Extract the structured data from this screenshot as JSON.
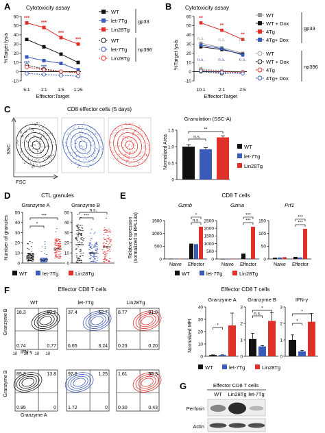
{
  "colors": {
    "wt": "#111111",
    "let7": "#3a5bb8",
    "lin28": "#e0302a",
    "gray": "#999999",
    "blot": "#222222"
  },
  "panels": {
    "A": {
      "letter": "A",
      "title": "Cytotoxicity assay",
      "ylabel": "%Target lysis",
      "xlabel": "Effector:Target",
      "groups": [
        "gp33",
        "np396"
      ],
      "legend": [
        "WT",
        "let-7Tg",
        "Lin28Tg",
        "WT",
        "let-7Tg",
        "Lin28Tg"
      ],
      "sig_lin28": "***",
      "sig_let7": "***"
    },
    "B": {
      "letter": "B",
      "title": "Cytotoxicity assay",
      "ylabel": "%Target lysis",
      "xlabel": "Effector:Target",
      "groups": [
        "gp33",
        "np396"
      ],
      "legend": [
        "WT",
        "WT + Dox",
        "4Tg",
        "4Tg+ Dox",
        "WT",
        "WT + Dox",
        "4Tg",
        "4Tg+ Dox"
      ],
      "sig": [
        "**",
        "**",
        "**"
      ],
      "ns": "n.s."
    },
    "C": {
      "letter": "C",
      "title": "CD8 effector cells (5 days)",
      "xaxis": "FSC",
      "yaxis": "SSC",
      "bar_title": "Granulation (SSC-A)",
      "bar_ylabel": "Normalized Area",
      "legend": [
        "WT",
        "let-7Tg",
        "Lin28Tg"
      ],
      "ns": "n.s.",
      "sig": "**"
    },
    "D": {
      "letter": "D",
      "title": "CTL granules",
      "ylabel": "Number of granules",
      "sub": [
        "Granzyme A",
        "Granzyme B"
      ],
      "legend": [
        "WT",
        "let-7Tg",
        "Lin28Tg"
      ],
      "sig": [
        "*",
        "***",
        "***",
        "n.s."
      ]
    },
    "E": {
      "letter": "E",
      "title": "CD8 T cells",
      "ylabel": "Relative expression",
      "ylabel2": "(normalized to RPL13a)",
      "genes": [
        "Gzmb",
        "Gzma",
        "Prf1"
      ],
      "xcats": [
        "Naive",
        "Effector"
      ],
      "legend": [
        "WT",
        "let-7Tg",
        "Lin28Tg"
      ],
      "sig": [
        "*",
        "***",
        "***",
        "***",
        "***",
        "n.s."
      ]
    },
    "F": {
      "letter": "F",
      "title": "Effector CD8 T cells",
      "cols": [
        "WT",
        "let-7Tg",
        "Lin28Tg"
      ],
      "row1_ylabel": "Granzyme B",
      "row1_xlabel": "IFN-γ",
      "row2_ylabel": "Granzyme B",
      "row2_xlabel": "Granzyme A",
      "ticks": [
        "10",
        "10",
        "10",
        "10"
      ],
      "bar_title": "Effector CD8 T cells",
      "bar_ylabel": "Normalized MFI",
      "bar_groups": [
        "Granzyme A",
        "Granzyme B",
        "IFN-γ"
      ],
      "legend": [
        "WT",
        "let-7Tg",
        "Lin28Tg"
      ],
      "sig": [
        "*",
        "n.s.",
        "*",
        "*",
        "*"
      ]
    },
    "G": {
      "letter": "G",
      "title": "Effector CD8 T cells",
      "cols": [
        "WT",
        "Lin28Tg",
        "let-7Tg"
      ],
      "rows": [
        "Perforin",
        "Actin"
      ]
    }
  },
  "chart_data": [
    {
      "panel": "A",
      "type": "line",
      "x": [
        "5:1",
        "1:1",
        "1:5",
        "1:25"
      ],
      "ylim": [
        -10,
        60
      ],
      "yticks": [
        "60",
        "50",
        "40",
        "30",
        "20",
        "10",
        "0",
        "-10"
      ],
      "series": [
        {
          "name": "WT",
          "group": "gp33",
          "values": [
            35,
            27,
            19,
            10
          ]
        },
        {
          "name": "let-7Tg",
          "group": "gp33",
          "values": [
            16,
            12,
            9,
            2
          ]
        },
        {
          "name": "Lin28Tg",
          "group": "gp33",
          "values": [
            53,
            48,
            37,
            30
          ]
        },
        {
          "name": "WT",
          "group": "np396",
          "values": [
            7,
            3,
            0,
            -1
          ]
        },
        {
          "name": "let-7Tg",
          "group": "np396",
          "values": [
            -2,
            -3,
            -4,
            -5
          ]
        },
        {
          "name": "Lin28Tg",
          "group": "np396",
          "values": [
            5,
            2,
            0,
            -1
          ]
        }
      ]
    },
    {
      "panel": "B",
      "type": "line",
      "x": [
        "10:1",
        "2:1",
        "2:5"
      ],
      "ylim": [
        -10,
        60
      ],
      "yticks": [
        "60",
        "50",
        "40",
        "30",
        "20",
        "10",
        "0",
        "-10"
      ],
      "series": [
        {
          "name": "WT",
          "group": "gp33",
          "values": [
            31,
            26,
            20
          ]
        },
        {
          "name": "WT + Dox",
          "group": "gp33",
          "values": [
            27,
            24,
            19
          ]
        },
        {
          "name": "4Tg",
          "group": "gp33",
          "values": [
            53,
            45,
            35
          ]
        },
        {
          "name": "4Tg+ Dox",
          "group": "gp33",
          "values": [
            29,
            25,
            18
          ]
        },
        {
          "name": "WT",
          "group": "np396",
          "values": [
            3,
            1,
            0
          ]
        },
        {
          "name": "WT + Dox",
          "group": "np396",
          "values": [
            0,
            -2,
            -1
          ]
        },
        {
          "name": "4Tg",
          "group": "np396",
          "values": [
            2,
            0,
            -1
          ]
        },
        {
          "name": "4Tg+ Dox",
          "group": "np396",
          "values": [
            1,
            -1,
            -2
          ]
        }
      ]
    },
    {
      "panel": "C-bar",
      "type": "bar",
      "categories": [
        "WT",
        "let-7Tg",
        "Lin28Tg"
      ],
      "values": [
        1.0,
        0.92,
        1.28
      ],
      "errors": [
        0.06,
        0.05,
        0.05
      ],
      "ylim": [
        0,
        1.5
      ],
      "yticks": [
        "1.5",
        "1.0",
        "0.5",
        "0"
      ]
    },
    {
      "panel": "D-GzmA",
      "type": "scatter",
      "categories": [
        "WT",
        "let-7Tg",
        "Lin28Tg"
      ],
      "values": [
        6,
        3,
        14
      ],
      "ylim": [
        0,
        50
      ],
      "yticks": [
        "50",
        "40",
        "30",
        "20",
        "10",
        "0"
      ]
    },
    {
      "panel": "D-GzmB",
      "type": "scatter",
      "categories": [
        "WT",
        "let-7Tg",
        "Lin28Tg"
      ],
      "values": [
        18,
        10,
        16
      ],
      "ylim": [
        0,
        50
      ],
      "yticks": [
        "50",
        "40",
        "30",
        "20",
        "10",
        "0"
      ]
    },
    {
      "panel": "E-Gzmb",
      "type": "bar",
      "categories": [
        "Naive",
        "Effector"
      ],
      "series": [
        {
          "name": "WT",
          "values": [
            5,
            600
          ]
        },
        {
          "name": "let-7Tg",
          "values": [
            3,
            580
          ]
        },
        {
          "name": "Lin28Tg",
          "values": [
            4,
            1260
          ]
        }
      ],
      "ylim": [
        0,
        1500
      ],
      "yticks": [
        "1500",
        "1000",
        "500",
        "0"
      ]
    },
    {
      "panel": "E-Gzma",
      "type": "bar",
      "categories": [
        "Naive",
        "Effector"
      ],
      "series": [
        {
          "name": "WT",
          "values": [
            1,
            350
          ]
        },
        {
          "name": "let-7Tg",
          "values": [
            1,
            30
          ]
        },
        {
          "name": "Lin28Tg",
          "values": [
            2,
            2100
          ]
        }
      ],
      "ylim": [
        0,
        2500
      ],
      "yticks": [
        "2500",
        "2000",
        "1500",
        "1000",
        "500",
        "0"
      ]
    },
    {
      "panel": "E-Prf1",
      "type": "bar",
      "categories": [
        "Naive",
        "Effector"
      ],
      "series": [
        {
          "name": "WT",
          "values": [
            5,
            8
          ]
        },
        {
          "name": "let-7Tg",
          "values": [
            6,
            6
          ]
        },
        {
          "name": "Lin28Tg",
          "values": [
            7,
            118
          ]
        }
      ],
      "ylim": [
        0,
        150
      ],
      "yticks": [
        "150",
        "100",
        "50",
        "0"
      ]
    },
    {
      "panel": "F-GzmA",
      "type": "bar",
      "categories": [
        "WT",
        "let-7Tg",
        "Lin28Tg"
      ],
      "values": [
        1,
        1,
        25
      ],
      "errors": [
        0.2,
        0.2,
        10
      ],
      "ylim": [
        0,
        40
      ],
      "yticks": [
        "40",
        "30",
        "20",
        "10",
        "0"
      ]
    },
    {
      "panel": "F-GzmB",
      "type": "bar",
      "categories": [
        "WT",
        "let-7Tg",
        "Lin28Tg"
      ],
      "values": [
        1.05,
        0.6,
        2.15
      ],
      "errors": [
        0.35,
        0.05,
        0.5
      ],
      "ylim": [
        0,
        3
      ],
      "yticks": [
        "3",
        "2",
        "1",
        "0"
      ]
    },
    {
      "panel": "F-IFNg",
      "type": "bar",
      "categories": [
        "WT",
        "let-7Tg",
        "Lin28Tg"
      ],
      "values": [
        1.0,
        0.3,
        2.1
      ],
      "errors": [
        0.3,
        0.05,
        0.5
      ],
      "ylim": [
        0,
        3
      ],
      "yticks": [
        "3",
        "2",
        "1",
        "0"
      ]
    },
    {
      "panel": "F-flow",
      "type": "table",
      "rows": [
        {
          "sample": "WT",
          "q": [
            "18.3",
            "80.2",
            "0.74",
            "0.77"
          ]
        },
        {
          "sample": "let-7Tg",
          "q": [
            "37.4",
            "52.7",
            "6.65",
            "3.24"
          ]
        },
        {
          "sample": "Lin28Tg",
          "q": [
            "8.77",
            "91.8",
            "0.23",
            "0.20"
          ]
        },
        {
          "sample": "WT",
          "q": [
            "85.3",
            "13.8",
            "0.95",
            "0"
          ]
        },
        {
          "sample": "let-7Tg",
          "q": [
            "97.0",
            "1.25",
            "1.72",
            "0"
          ]
        },
        {
          "sample": "Lin28Tg",
          "q": [
            "1.61",
            "98.3",
            "0.30",
            "0.43"
          ]
        }
      ]
    },
    {
      "panel": "G",
      "type": "table",
      "columns": [
        "WT",
        "Lin28Tg",
        "let-7Tg"
      ],
      "rows": [
        {
          "name": "Perforin",
          "intensity": [
            0.45,
            1.0,
            0.15
          ]
        },
        {
          "name": "Actin",
          "intensity": [
            0.8,
            0.82,
            0.78
          ]
        }
      ]
    }
  ]
}
